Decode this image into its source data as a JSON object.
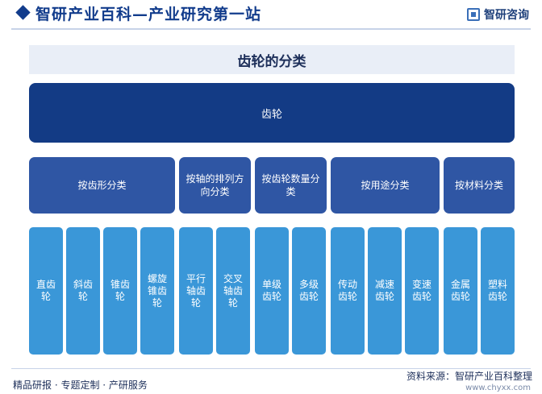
{
  "header": {
    "title": "智研产业百科—产业研究第一站",
    "logo_text": "智研咨询"
  },
  "diagram": {
    "title": "齿轮的分类",
    "root": "齿轮",
    "categories": [
      {
        "label": "按齿形分类",
        "items": [
          "直齿轮",
          "斜齿轮",
          "锥齿轮",
          "螺旋锥齿轮"
        ]
      },
      {
        "label": "按轴的排列方向分类",
        "items": [
          "平行轴齿轮",
          "交叉轴齿轮"
        ]
      },
      {
        "label": "按齿轮数量分类",
        "items": [
          "单级齿轮",
          "多级齿轮"
        ]
      },
      {
        "label": "按用途分类",
        "items": [
          "传动齿轮",
          "减速齿轮",
          "变速齿轮"
        ]
      },
      {
        "label": "按材料分类",
        "items": [
          "金属齿轮",
          "塑料齿轮"
        ]
      }
    ]
  },
  "footer": {
    "tagline": "精品研报 · 专题定制 · 产研服务",
    "source": "资料来源：智研产业百科整理",
    "url": "www.chyxx.com"
  }
}
